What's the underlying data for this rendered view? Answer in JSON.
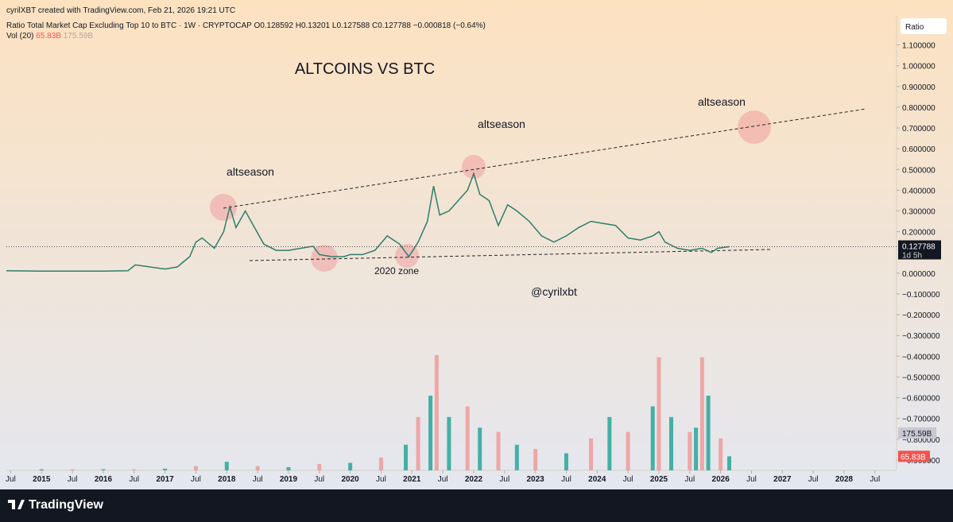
{
  "chart_data": {
    "type": "line",
    "header": "cyrilXBT created with TradingView.com, Feb 21, 2026 19:21 UTC",
    "title": "Ratio Total Market Cap Excluding Top 10 to BTC · 1W · CRYPTOCAP",
    "ohlc": [
      {
        "label": "O",
        "value": 0.128592
      },
      {
        "label": "H",
        "value": 0.13201
      },
      {
        "label": "L",
        "value": 0.127588
      },
      {
        "label": "C",
        "value": 0.127788
      }
    ],
    "change": {
      "value": -0.000818,
      "label": "−0.000818"
    },
    "change_pct": {
      "value": -0.64,
      "label": "(−0.64%)"
    },
    "volume_legend": "Vol (20)",
    "volume_last": {
      "value": 65.83,
      "label": "65.83B"
    },
    "volume_ma_last": {
      "value": 175.59,
      "label": "175.59B"
    },
    "scale_label": "Ratio",
    "countdown": "1d 5h",
    "annotations": [
      "ALTCOINS VS BTC",
      "altseason",
      "altseason",
      "altseason",
      "2020 zone",
      "@cyrilxbt"
    ],
    "footer": "TradingView",
    "color": "#2e7d6b",
    "volume_colors": [
      "#26a69a",
      "#ef9a9a"
    ],
    "xlim": [
      2014.43,
      2028.85
    ],
    "ylim": [
      -0.95,
      1.24
    ],
    "y2lim": [
      0,
      2130
    ],
    "x": [
      2014.43,
      2015,
      2016,
      2016.4,
      2016.52,
      2017.0,
      2017.2,
      2017.4,
      2017.5,
      2017.6,
      2017.8,
      2017.95,
      2018.05,
      2018.15,
      2018.3,
      2018.45,
      2018.6,
      2018.8,
      2019.0,
      2019.2,
      2019.4,
      2019.5,
      2019.7,
      2019.9,
      2020.0,
      2020.2,
      2020.4,
      2020.6,
      2020.8,
      2020.95,
      2021.1,
      2021.25,
      2021.35,
      2021.45,
      2021.6,
      2021.75,
      2021.9,
      2022.0,
      2022.1,
      2022.25,
      2022.4,
      2022.55,
      2022.7,
      2022.9,
      2023.1,
      2023.3,
      2023.5,
      2023.7,
      2023.9,
      2024.1,
      2024.3,
      2024.5,
      2024.7,
      2024.9,
      2025.0,
      2025.1,
      2025.3,
      2025.5,
      2025.7,
      2025.85,
      2025.95,
      2026.14
    ],
    "values": [
      0.012,
      0.01,
      0.01,
      0.012,
      0.04,
      0.02,
      0.03,
      0.08,
      0.15,
      0.17,
      0.12,
      0.2,
      0.32,
      0.22,
      0.3,
      0.22,
      0.14,
      0.11,
      0.11,
      0.12,
      0.13,
      0.09,
      0.08,
      0.08,
      0.09,
      0.09,
      0.11,
      0.18,
      0.14,
      0.08,
      0.15,
      0.25,
      0.42,
      0.28,
      0.3,
      0.35,
      0.4,
      0.48,
      0.38,
      0.35,
      0.23,
      0.33,
      0.3,
      0.25,
      0.18,
      0.15,
      0.18,
      0.22,
      0.25,
      0.24,
      0.23,
      0.17,
      0.16,
      0.18,
      0.2,
      0.15,
      0.12,
      0.11,
      0.12,
      0.1,
      0.12,
      0.127788
    ],
    "volume_x": [
      2015,
      2015.5,
      2016,
      2016.5,
      2017,
      2017.5,
      2018.0,
      2018.5,
      2019.0,
      2019.5,
      2020.0,
      2020.5,
      2020.9,
      2021.1,
      2021.3,
      2021.4,
      2021.6,
      2021.9,
      2022.1,
      2022.4,
      2022.7,
      2023.0,
      2023.5,
      2023.9,
      2024.2,
      2024.5,
      2024.9,
      2025.0,
      2025.2,
      2025.5,
      2025.6,
      2025.7,
      2025.8,
      2026.0,
      2026.14
    ],
    "volume_values": [
      5,
      5,
      5,
      5,
      8,
      20,
      40,
      20,
      15,
      30,
      35,
      60,
      120,
      250,
      350,
      540,
      250,
      300,
      200,
      180,
      120,
      100,
      80,
      150,
      250,
      180,
      300,
      530,
      250,
      180,
      200,
      530,
      350,
      150,
      65.83
    ],
    "xticks": [
      {
        "value": 2014.5,
        "label": "Jul"
      },
      2015,
      {
        "value": 2015.5,
        "label": "Jul"
      },
      2016,
      {
        "value": 2016.5,
        "label": "Jul"
      },
      2017,
      {
        "value": 2017.5,
        "label": "Jul"
      },
      2018,
      {
        "value": 2018.5,
        "label": "Jul"
      },
      2019,
      {
        "value": 2019.5,
        "label": "Jul"
      },
      2020,
      {
        "value": 2020.5,
        "label": "Jul"
      },
      2021,
      {
        "value": 2021.5,
        "label": "Jul"
      },
      2022,
      {
        "value": 2022.5,
        "label": "Jul"
      },
      2023,
      {
        "value": 2023.5,
        "label": "Jul"
      },
      2024,
      {
        "value": 2024.5,
        "label": "Jul"
      },
      2025,
      {
        "value": 2025.5,
        "label": "Jul"
      },
      2026,
      {
        "value": 2026.5,
        "label": "Jul"
      },
      2027,
      {
        "value": 2027.5,
        "label": "Jul"
      },
      2028,
      {
        "value": 2028.5,
        "label": "Jul"
      }
    ],
    "yticks": [
      {
        "value": 1.1,
        "label": "1.100000"
      },
      {
        "value": 1.0,
        "label": "1.000000"
      },
      {
        "value": 0.9,
        "label": "0.900000"
      },
      {
        "value": 0.8,
        "label": "0.800000"
      },
      {
        "value": 0.7,
        "label": "0.700000"
      },
      {
        "value": 0.6,
        "label": "0.600000"
      },
      {
        "value": 0.5,
        "label": "0.500000"
      },
      {
        "value": 0.4,
        "label": "0.400000"
      },
      {
        "value": 0.3,
        "label": "0.300000"
      },
      {
        "value": 0.2,
        "label": "0.200000"
      },
      {
        "value": 0.0,
        "label": "0.000000"
      },
      {
        "value": -0.1,
        "label": "−0.100000"
      },
      {
        "value": -0.2,
        "label": "−0.200000"
      },
      {
        "value": -0.3,
        "label": "−0.300000"
      },
      {
        "value": -0.4,
        "label": "−0.400000"
      },
      {
        "value": -0.5,
        "label": "−0.500000"
      },
      {
        "value": -0.6,
        "label": "−0.600000"
      },
      {
        "value": -0.7,
        "label": "−0.700000"
      },
      {
        "value": -0.8,
        "label": "−0.800000"
      },
      {
        "value": -0.9,
        "label": "−0.900000"
      }
    ]
  }
}
